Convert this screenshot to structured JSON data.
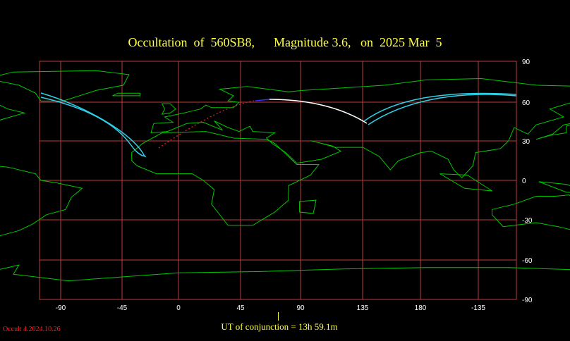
{
  "title": "Occultation  of  560SB8,      Magnitude 3.6,   on  2025 Mar  5",
  "conjunction_label": "UT of conjunction = 13h 59.1m",
  "version": "Occult 4.2024.10.26",
  "map": {
    "projection": "cylindrical",
    "lon_ticks": [
      "-90",
      "-45",
      "0",
      "45",
      "90",
      "135",
      "180",
      "-135"
    ],
    "lat_ticks": [
      "90",
      "60",
      "30",
      "0",
      "-30",
      "-60",
      "-90"
    ],
    "colors": {
      "background": "#000000",
      "grid": "#c03a3a",
      "coast": "#00c800",
      "path_day": "#ffffff",
      "path_twilight": "#3030ff",
      "path_dark": "#e02020",
      "path_limits": "#30d0e8",
      "text": "#ffff44"
    },
    "occultation_path": {
      "visible_section": "white",
      "twilight_section": "blue",
      "below_horizon_section": "dotted red",
      "limit_lines": "cyan"
    }
  }
}
